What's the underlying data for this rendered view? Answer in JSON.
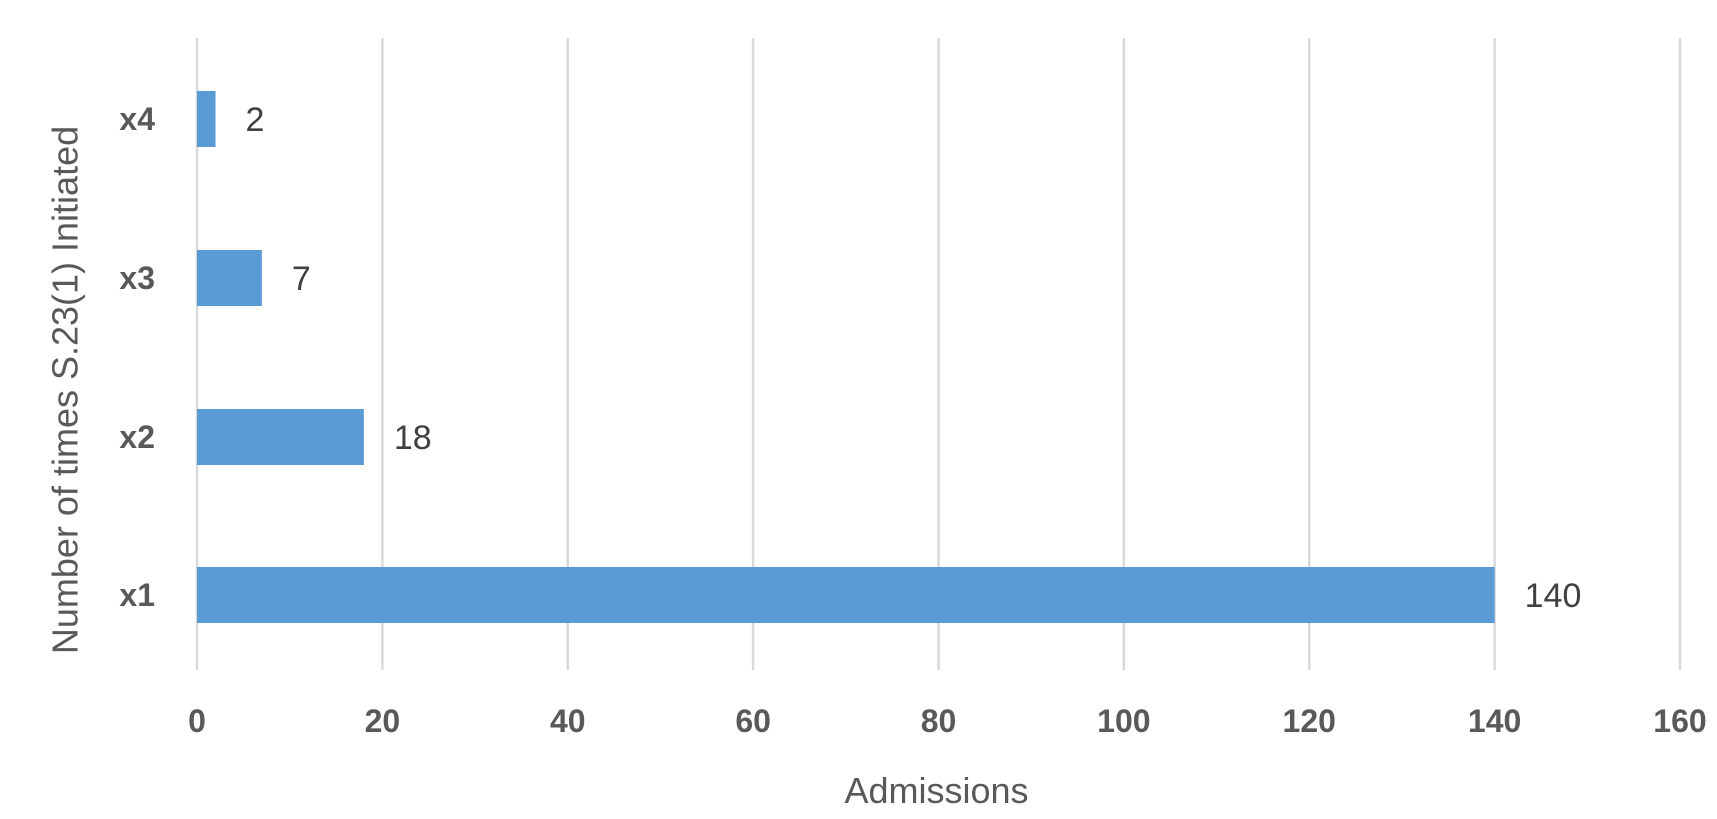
{
  "chart_data": {
    "type": "bar",
    "orientation": "horizontal",
    "categories": [
      "x1",
      "x2",
      "x3",
      "x4"
    ],
    "values": [
      140,
      18,
      7,
      2
    ],
    "data_labels": [
      "140",
      "18",
      "7",
      "2"
    ],
    "xlabel": "Admissions",
    "ylabel": "Number of times S.23(1) Initiated",
    "xlim": [
      0,
      160
    ],
    "x_ticks": [
      0,
      20,
      40,
      60,
      80,
      100,
      120,
      140,
      160
    ],
    "x_tick_labels": [
      "0",
      "20",
      "40",
      "60",
      "80",
      "100",
      "120",
      "140",
      "160"
    ],
    "grid": "vertical",
    "legend": "none",
    "colors": {
      "bar": "#5b9bd5",
      "grid": "#d9d9d9",
      "text": "#595959"
    }
  }
}
